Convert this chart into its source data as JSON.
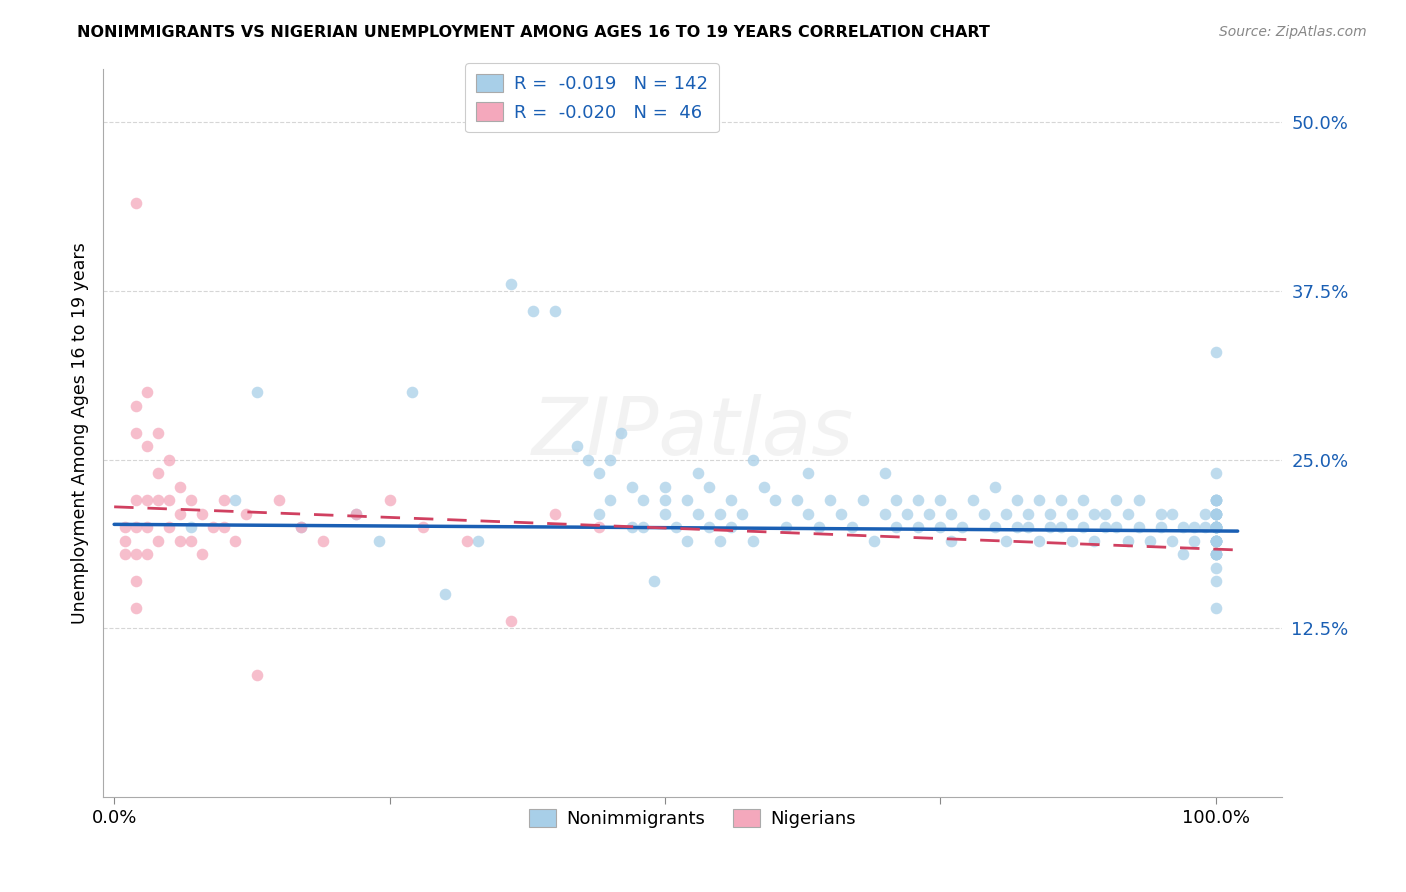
{
  "title": "NONIMMIGRANTS VS NIGERIAN UNEMPLOYMENT AMONG AGES 16 TO 19 YEARS CORRELATION CHART",
  "source": "Source: ZipAtlas.com",
  "ylabel": "Unemployment Among Ages 16 to 19 years",
  "xlim": [
    -0.01,
    1.06
  ],
  "ylim": [
    0,
    0.54
  ],
  "yticks": [
    0.125,
    0.25,
    0.375,
    0.5
  ],
  "ytick_labels": [
    "12.5%",
    "25.0%",
    "37.5%",
    "50.0%"
  ],
  "xticks": [
    0.0,
    0.25,
    0.5,
    0.75,
    1.0
  ],
  "xtick_labels": [
    "0.0%",
    "",
    "",
    "",
    "100.0%"
  ],
  "r_nonimm": "-0.019",
  "n_nonimm": "142",
  "r_nig": "-0.020",
  "n_nig": "46",
  "blue_scatter": "#a8cfe8",
  "pink_scatter": "#f4a8bc",
  "blue_trend": "#1a5fb4",
  "pink_trend": "#d04060",
  "watermark": "ZIPatlas",
  "grid_color": "#cccccc",
  "bg_color": "#ffffff",
  "title_color": "#000000",
  "source_color": "#888888",
  "tick_color_right": "#1a5fb4",
  "scatter_size": 70,
  "scatter_alpha": 0.75,
  "legend_label_color": "#1a5fb4",
  "nonimm_x": [
    0.07,
    0.11,
    0.13,
    0.17,
    0.22,
    0.24,
    0.27,
    0.3,
    0.33,
    0.36,
    0.38,
    0.4,
    0.42,
    0.43,
    0.44,
    0.44,
    0.45,
    0.45,
    0.46,
    0.47,
    0.47,
    0.48,
    0.48,
    0.49,
    0.5,
    0.5,
    0.5,
    0.51,
    0.52,
    0.52,
    0.53,
    0.53,
    0.54,
    0.54,
    0.55,
    0.55,
    0.56,
    0.56,
    0.57,
    0.58,
    0.58,
    0.59,
    0.6,
    0.61,
    0.62,
    0.63,
    0.63,
    0.64,
    0.65,
    0.66,
    0.67,
    0.68,
    0.69,
    0.7,
    0.7,
    0.71,
    0.71,
    0.72,
    0.73,
    0.73,
    0.74,
    0.75,
    0.75,
    0.76,
    0.76,
    0.77,
    0.78,
    0.79,
    0.8,
    0.8,
    0.81,
    0.81,
    0.82,
    0.82,
    0.83,
    0.83,
    0.84,
    0.84,
    0.85,
    0.85,
    0.86,
    0.86,
    0.87,
    0.87,
    0.88,
    0.88,
    0.89,
    0.89,
    0.9,
    0.9,
    0.91,
    0.91,
    0.92,
    0.92,
    0.93,
    0.93,
    0.94,
    0.95,
    0.95,
    0.96,
    0.96,
    0.97,
    0.97,
    0.98,
    0.98,
    0.99,
    0.99,
    1.0,
    1.0,
    1.0,
    1.0,
    1.0,
    1.0,
    1.0,
    1.0,
    1.0,
    1.0,
    1.0,
    1.0,
    1.0,
    1.0,
    1.0,
    1.0,
    1.0,
    1.0,
    1.0,
    1.0,
    1.0,
    1.0,
    1.0,
    1.0,
    1.0,
    1.0,
    1.0,
    1.0,
    1.0,
    1.0,
    1.0,
    1.0,
    1.0,
    1.0,
    1.0
  ],
  "nonimm_y": [
    0.2,
    0.22,
    0.3,
    0.2,
    0.21,
    0.19,
    0.3,
    0.15,
    0.19,
    0.38,
    0.36,
    0.36,
    0.26,
    0.25,
    0.24,
    0.21,
    0.25,
    0.22,
    0.27,
    0.2,
    0.23,
    0.2,
    0.22,
    0.16,
    0.22,
    0.23,
    0.21,
    0.2,
    0.22,
    0.19,
    0.21,
    0.24,
    0.2,
    0.23,
    0.21,
    0.19,
    0.2,
    0.22,
    0.21,
    0.25,
    0.19,
    0.23,
    0.22,
    0.2,
    0.22,
    0.21,
    0.24,
    0.2,
    0.22,
    0.21,
    0.2,
    0.22,
    0.19,
    0.21,
    0.24,
    0.2,
    0.22,
    0.21,
    0.2,
    0.22,
    0.21,
    0.2,
    0.22,
    0.19,
    0.21,
    0.2,
    0.22,
    0.21,
    0.2,
    0.23,
    0.21,
    0.19,
    0.2,
    0.22,
    0.21,
    0.2,
    0.22,
    0.19,
    0.21,
    0.2,
    0.22,
    0.2,
    0.21,
    0.19,
    0.2,
    0.22,
    0.21,
    0.19,
    0.21,
    0.2,
    0.22,
    0.2,
    0.19,
    0.21,
    0.2,
    0.22,
    0.19,
    0.21,
    0.2,
    0.19,
    0.21,
    0.2,
    0.18,
    0.2,
    0.19,
    0.21,
    0.2,
    0.22,
    0.2,
    0.19,
    0.21,
    0.2,
    0.18,
    0.17,
    0.19,
    0.2,
    0.21,
    0.18,
    0.19,
    0.2,
    0.22,
    0.19,
    0.2,
    0.18,
    0.21,
    0.2,
    0.19,
    0.18,
    0.2,
    0.19,
    0.21,
    0.2,
    0.16,
    0.14,
    0.18,
    0.2,
    0.22,
    0.19,
    0.24,
    0.33,
    0.21,
    0.22
  ],
  "nig_x": [
    0.01,
    0.01,
    0.01,
    0.02,
    0.02,
    0.02,
    0.02,
    0.02,
    0.02,
    0.02,
    0.02,
    0.03,
    0.03,
    0.03,
    0.03,
    0.03,
    0.04,
    0.04,
    0.04,
    0.04,
    0.05,
    0.05,
    0.05,
    0.06,
    0.06,
    0.06,
    0.07,
    0.07,
    0.08,
    0.08,
    0.09,
    0.1,
    0.1,
    0.11,
    0.12,
    0.13,
    0.15,
    0.17,
    0.19,
    0.22,
    0.25,
    0.28,
    0.32,
    0.36,
    0.4,
    0.44
  ],
  "nig_y": [
    0.2,
    0.19,
    0.18,
    0.44,
    0.29,
    0.27,
    0.22,
    0.2,
    0.18,
    0.16,
    0.14,
    0.3,
    0.26,
    0.22,
    0.2,
    0.18,
    0.27,
    0.24,
    0.22,
    0.19,
    0.25,
    0.22,
    0.2,
    0.23,
    0.21,
    0.19,
    0.22,
    0.19,
    0.21,
    0.18,
    0.2,
    0.22,
    0.2,
    0.19,
    0.21,
    0.09,
    0.22,
    0.2,
    0.19,
    0.21,
    0.22,
    0.2,
    0.19,
    0.13,
    0.21,
    0.2
  ],
  "blue_trend_x": [
    0.0,
    1.02
  ],
  "blue_trend_y": [
    0.202,
    0.197
  ],
  "pink_trend_x": [
    0.0,
    1.02
  ],
  "pink_trend_y": [
    0.215,
    0.183
  ]
}
